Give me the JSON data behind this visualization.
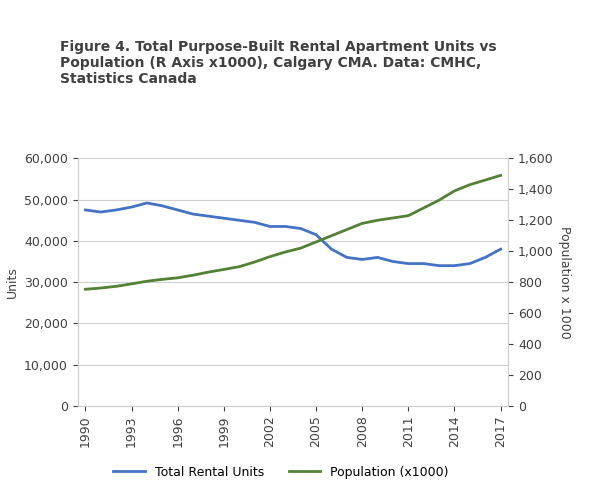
{
  "title": "Figure 4. Total Purpose-Built Rental Apartment Units vs\nPopulation (R Axis x1000), Calgary CMA. Data: CMHC,\nStatistics Canada",
  "years": [
    1990,
    1991,
    1992,
    1993,
    1994,
    1995,
    1996,
    1997,
    1998,
    1999,
    2000,
    2001,
    2002,
    2003,
    2004,
    2005,
    2006,
    2007,
    2008,
    2009,
    2010,
    2011,
    2012,
    2013,
    2014,
    2015,
    2016,
    2017
  ],
  "rental_units": [
    47500,
    47000,
    47500,
    48200,
    49200,
    48500,
    47500,
    46500,
    46000,
    45500,
    45000,
    44500,
    43500,
    43500,
    43000,
    41500,
    38000,
    36000,
    35500,
    36000,
    35000,
    34500,
    34500,
    34000,
    34000,
    34500,
    36000,
    38000
  ],
  "population_x1000": [
    754,
    762,
    773,
    789,
    806,
    818,
    828,
    845,
    865,
    882,
    900,
    930,
    965,
    995,
    1020,
    1060,
    1100,
    1140,
    1180,
    1200,
    1215,
    1230,
    1280,
    1330,
    1390,
    1430,
    1460,
    1490
  ],
  "rental_color": "#4472C4",
  "population_color": "#538135",
  "rental_label": "Total Rental Units",
  "population_label": "Population (x1000)",
  "ylabel_left": "Units",
  "ylabel_right": "Population x 1000",
  "ylim_left": [
    0,
    60000
  ],
  "ylim_right": [
    0,
    1600
  ],
  "yticks_left": [
    0,
    10000,
    20000,
    30000,
    40000,
    50000,
    60000
  ],
  "yticks_right": [
    0,
    200,
    400,
    600,
    800,
    1000,
    1200,
    1400,
    1600
  ],
  "xticks": [
    1990,
    1993,
    1996,
    1999,
    2002,
    2005,
    2008,
    2011,
    2014,
    2017
  ],
  "line_width": 2.0,
  "title_fontsize": 10,
  "tick_fontsize": 9,
  "label_fontsize": 9,
  "legend_fontsize": 9,
  "title_color": "#404040",
  "tick_color": "#404040",
  "background_color": "#ffffff",
  "grid_color": "#d0d0d0"
}
